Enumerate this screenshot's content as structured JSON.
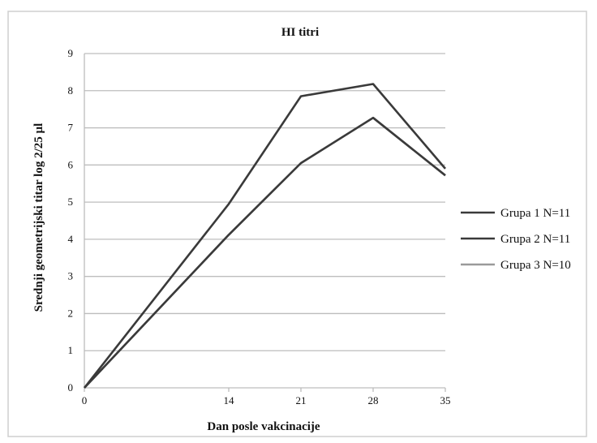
{
  "chart_data": {
    "type": "line",
    "title": "HI titri",
    "xlabel": "Dan posle vakcinacije",
    "ylabel": "Srednji geometrijski titar log 2/25 µl",
    "x": [
      0,
      14,
      21,
      28,
      35
    ],
    "xlim": [
      0,
      35
    ],
    "ylim": [
      0,
      9
    ],
    "yticks": [
      0,
      1,
      2,
      3,
      4,
      5,
      6,
      7,
      8,
      9
    ],
    "grid": true,
    "legend_position": "right",
    "series": [
      {
        "name": "Grupa 1 N=11",
        "values": [
          0,
          4.95,
          7.85,
          8.18,
          5.9
        ],
        "color": "#3a3a3a"
      },
      {
        "name": "Grupa 2 N=11",
        "values": [
          0,
          4.12,
          6.05,
          7.27,
          5.72
        ],
        "color": "#3a3a3a"
      },
      {
        "name": "Grupa 3 N=10",
        "values": [
          0,
          4.12,
          6.05,
          7.27,
          5.72
        ],
        "color": "#9a9a9a"
      }
    ]
  }
}
